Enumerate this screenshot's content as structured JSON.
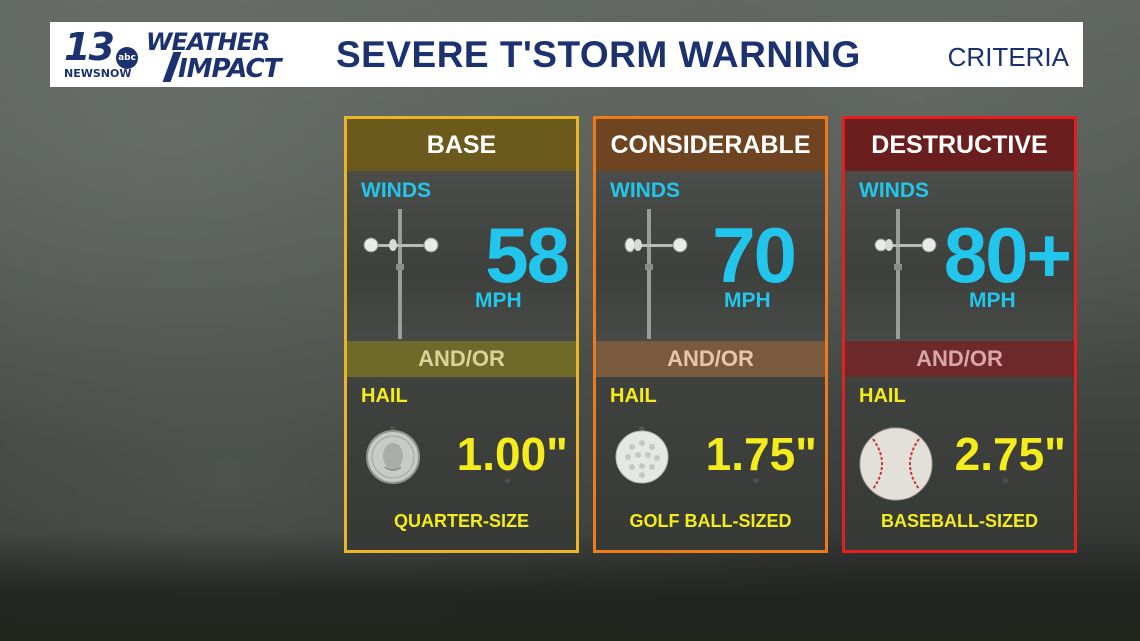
{
  "header": {
    "logo_number": "13",
    "logo_abc": "abc",
    "logo_newsnow": "NEWSNOW",
    "logo_weather": "WEATHER",
    "logo_impact": "IMPACT",
    "title": "SEVERE T'STORM WARNING",
    "criteria": "CRITERIA"
  },
  "cards": [
    {
      "heading": "BASE",
      "winds_label": "WINDS",
      "wind_value": "58",
      "wind_unit": "MPH",
      "andor": "AND/OR",
      "hail_label": "HAIL",
      "hail_value": "1.00\"",
      "hail_desc": "QUARTER-SIZE",
      "icon": "quarter-coin-icon",
      "colors": {
        "border": "#e8b627",
        "head": "#6b5a1c",
        "andor_bg": "#6e6a2a",
        "andor_text": "#d8d49a"
      }
    },
    {
      "heading": "CONSIDERABLE",
      "winds_label": "WINDS",
      "wind_value": "70",
      "wind_unit": "MPH",
      "andor": "AND/OR",
      "hail_label": "HAIL",
      "hail_value": "1.75\"",
      "hail_desc": "GOLF BALL-SIZED",
      "icon": "golf-ball-icon",
      "colors": {
        "border": "#ee7a1a",
        "head": "#6e4421",
        "andor_bg": "#7a5a3e",
        "andor_text": "#e3c7a8"
      }
    },
    {
      "heading": "DESTRUCTIVE",
      "winds_label": "WINDS",
      "wind_value": "80+",
      "wind_unit": "MPH",
      "andor": "AND/OR",
      "hail_label": "HAIL",
      "hail_value": "2.75\"",
      "hail_desc": "BASEBALL-SIZED",
      "icon": "baseball-icon",
      "colors": {
        "border": "#e32020",
        "head": "#6a1f1e",
        "andor_bg": "#6e2a2a",
        "andor_text": "#dba7a5"
      }
    }
  ]
}
